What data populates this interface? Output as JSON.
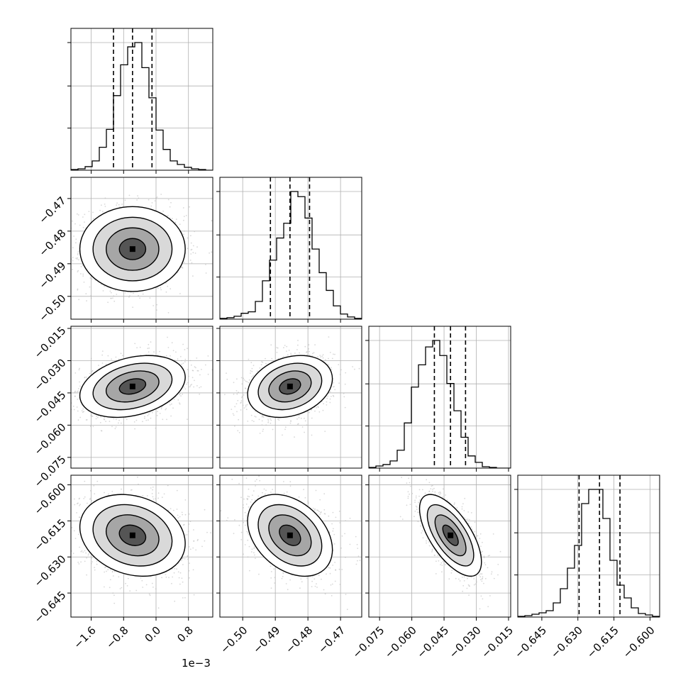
{
  "chart_data": {
    "type": "corner",
    "parameters": 4,
    "x_offset_label": "1e−3",
    "grid": true,
    "quantile_lines": "dashed",
    "axes": [
      {
        "param_index": 0,
        "range": [
          -2.1,
          1.4
        ],
        "tick_values": [
          -1.6,
          -0.8,
          0.0,
          0.8
        ],
        "tick_labels": [
          "−1.6",
          "−0.8",
          "0.0",
          "0.8"
        ],
        "quantiles": [
          -1.05,
          -0.58,
          -0.1
        ],
        "hist_counts": [
          1,
          2,
          5,
          13,
          32,
          57,
          104,
          147,
          172,
          178,
          143,
          101,
          56,
          29,
          13,
          8,
          4,
          2,
          1,
          0
        ]
      },
      {
        "param_index": 1,
        "range": [
          -0.507,
          -0.4635
        ],
        "tick_values": [
          -0.5,
          -0.49,
          -0.48,
          -0.47
        ],
        "tick_labels": [
          "−0.50",
          "−0.49",
          "−0.48",
          "−0.47"
        ],
        "quantiles": [
          -0.4915,
          -0.4855,
          -0.4795
        ],
        "hist_counts": [
          1,
          2,
          4,
          8,
          10,
          24,
          52,
          80,
          110,
          130,
          173,
          166,
          137,
          95,
          63,
          39,
          18,
          7,
          3,
          1
        ]
      },
      {
        "param_index": 2,
        "range": [
          -0.08,
          -0.014
        ],
        "tick_values": [
          -0.075,
          -0.06,
          -0.045,
          -0.03,
          -0.015
        ],
        "tick_labels": [
          "−0.075",
          "−0.060",
          "−0.045",
          "−0.030",
          "−0.015"
        ],
        "quantiles": [
          -0.0495,
          -0.042,
          -0.035
        ],
        "hist_counts": [
          1,
          3,
          5,
          10,
          25,
          63,
          113,
          144,
          169,
          178,
          157,
          118,
          80,
          43,
          17,
          8,
          2,
          1,
          0,
          0
        ]
      },
      {
        "param_index": 3,
        "range": [
          -0.655,
          -0.596
        ],
        "tick_values": [
          -0.645,
          -0.63,
          -0.615,
          -0.6
        ],
        "tick_labels": [
          "−0.645",
          "−0.630",
          "−0.615",
          "−0.600"
        ],
        "quantiles": [
          -0.6295,
          -0.621,
          -0.6125
        ],
        "hist_counts": [
          1,
          2,
          4,
          6,
          9,
          20,
          40,
          69,
          101,
          160,
          180,
          180,
          139,
          80,
          45,
          27,
          13,
          5,
          3,
          1
        ]
      }
    ],
    "pair_panels": [
      {
        "x_param": 0,
        "y_param": 1,
        "center": [
          -0.58,
          -0.4855
        ],
        "std": [
          0.65,
          0.0065
        ],
        "correlation": 0.0
      },
      {
        "x_param": 0,
        "y_param": 2,
        "center": [
          -0.58,
          -0.042
        ],
        "std": [
          0.65,
          0.0072
        ],
        "correlation": 0.3
      },
      {
        "x_param": 1,
        "y_param": 2,
        "center": [
          -0.4855,
          -0.042
        ],
        "std": [
          0.0065,
          0.0072
        ],
        "correlation": 0.25
      },
      {
        "x_param": 0,
        "y_param": 3,
        "center": [
          -0.58,
          -0.621
        ],
        "std": [
          0.65,
          0.0085
        ],
        "correlation": -0.2
      },
      {
        "x_param": 1,
        "y_param": 3,
        "center": [
          -0.4855,
          -0.621
        ],
        "std": [
          0.0065,
          0.0085
        ],
        "correlation": -0.35
      },
      {
        "x_param": 2,
        "y_param": 3,
        "center": [
          -0.042,
          -0.621
        ],
        "std": [
          0.0072,
          0.0085
        ],
        "correlation": -0.65
      }
    ],
    "contour_levels_sigma": [
      0.5,
      1.0,
      1.5,
      2.0
    ]
  }
}
